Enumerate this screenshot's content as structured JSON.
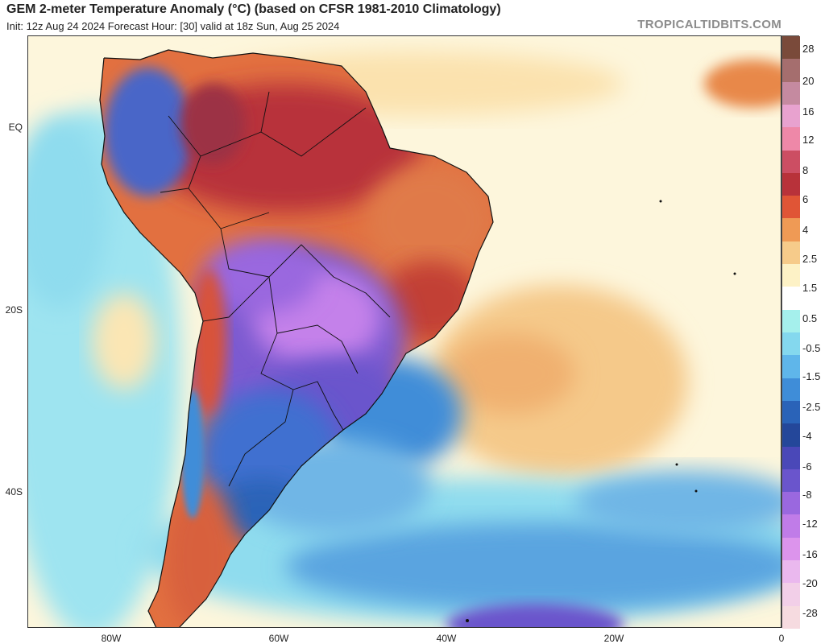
{
  "header": {
    "title": "GEM 2-meter Temperature Anomaly (°C) (based on CFSR 1981-2010 Climatology)",
    "subtitle": "Init: 12z Aug 24 2024   Forecast Hour: [30]   valid at 18z Sun, Aug 25 2024",
    "brand": "TROPICALTIDBITS.COM"
  },
  "axes": {
    "lat_labels": [
      {
        "text": "EQ",
        "lat": 0
      },
      {
        "text": "20S",
        "lat": -20
      },
      {
        "text": "40S",
        "lat": -40
      }
    ],
    "lon_labels": [
      {
        "text": "80W",
        "lon": -80
      },
      {
        "text": "60W",
        "lon": -60
      },
      {
        "text": "40W",
        "lon": -40
      },
      {
        "text": "20W",
        "lon": -20
      },
      {
        "text": "0",
        "lon": 0
      }
    ]
  },
  "colorbar": {
    "labels": [
      "28",
      "20",
      "16",
      "12",
      "8",
      "6",
      "4",
      "2.5",
      "1.5",
      "0.5",
      "-0.5",
      "-1.5",
      "-2.5",
      "-4",
      "-6",
      "-8",
      "-12",
      "-16",
      "-20",
      "-28"
    ],
    "colors": [
      "#7a4a3a",
      "#a56e6e",
      "#c58aa0",
      "#e8a2cf",
      "#ee88a8",
      "#cc4e63",
      "#b8323a",
      "#e05536",
      "#ef9a55",
      "#f6cb8a",
      "#fdf2c6",
      "#ffffff",
      "#a5f0ec",
      "#84d8ee",
      "#5fb6ea",
      "#3f8dd8",
      "#2a63b8",
      "#24479a",
      "#4a48b8",
      "#6a55cc",
      "#9a68df",
      "#c07ce8",
      "#dc94ec",
      "#eab8ee",
      "#f2cfe8",
      "#f6dbe0"
    ]
  },
  "map_fields": {
    "region": "South America and South Atlantic",
    "lon_range": [
      -90,
      0
    ],
    "lat_range": [
      10,
      -50
    ],
    "ocean_colors": {
      "warm": "#f7d59b",
      "neutral": "#fdf6dc",
      "cool": "#8fdcee",
      "cold": "#4f96dc"
    },
    "land_colors": {
      "hot": "#b8323a",
      "warm": "#e0663a",
      "cold": "#7b5ad0",
      "very_cold": "#b679e6",
      "cool": "#3f6fd0"
    }
  }
}
